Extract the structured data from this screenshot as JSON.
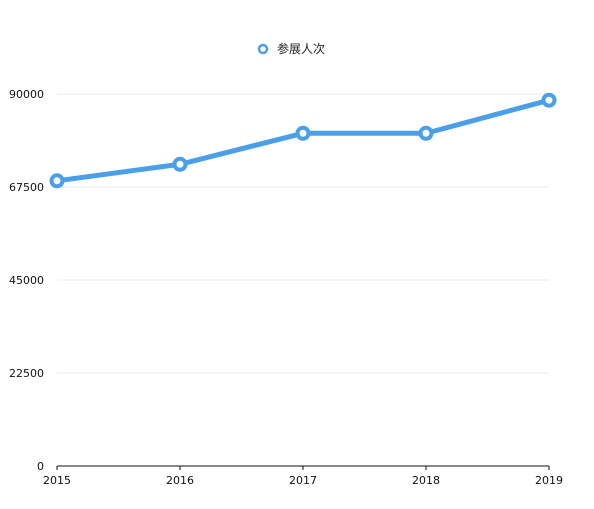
{
  "chart_data": {
    "type": "line",
    "x": [
      "2015",
      "2016",
      "2017",
      "2018",
      "2019"
    ],
    "series": [
      {
        "name": "参展人次",
        "values": [
          69000,
          73000,
          80500,
          80500,
          88500
        ],
        "color": "#4a9fe8"
      }
    ],
    "yticks": [
      "0",
      "22500",
      "45000",
      "67500",
      "90000"
    ],
    "ylim": [
      0,
      90000
    ],
    "grid": true,
    "legend_position": "top-center"
  }
}
